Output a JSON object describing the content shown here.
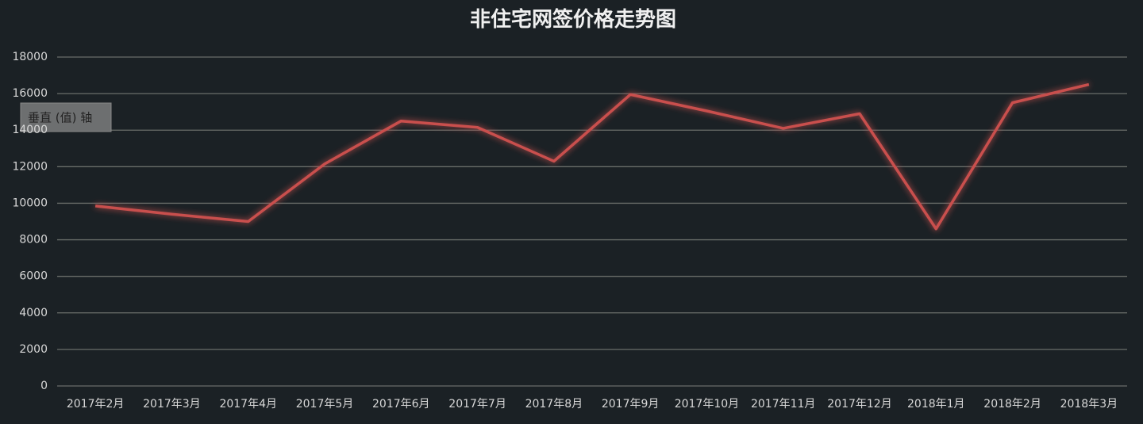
{
  "chart_data": {
    "type": "line",
    "title": "非住宅网签价格走势图",
    "tooltip": "垂直 (值) 轴",
    "categories": [
      "2017年2月",
      "2017年3月",
      "2017年4月",
      "2017年5月",
      "2017年6月",
      "2017年7月",
      "2017年8月",
      "2017年9月",
      "2017年10月",
      "2017年11月",
      "2017年12月",
      "2018年1月",
      "2018年2月",
      "2018年3月"
    ],
    "values": [
      9850,
      9400,
      9000,
      12150,
      14500,
      14150,
      12300,
      15950,
      15050,
      14100,
      14900,
      8600,
      15500,
      16500
    ],
    "color": "#c9504d",
    "ylim": [
      0,
      18000
    ],
    "yticks": [
      0,
      2000,
      4000,
      6000,
      8000,
      10000,
      12000,
      14000,
      16000,
      18000
    ],
    "grid": true
  }
}
